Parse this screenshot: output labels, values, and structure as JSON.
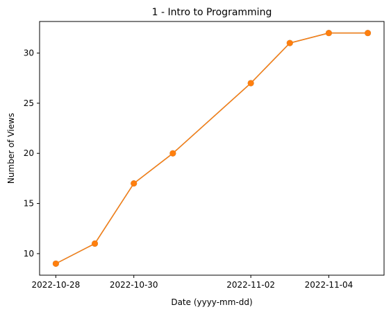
{
  "chart_data": {
    "type": "line",
    "title": "1 - Intro to Programming",
    "xlabel": "Date (yyyy-mm-dd)",
    "ylabel": "Number of Views",
    "x_tick_labels": [
      "2022-10-28",
      "2022-10-30",
      "2022-11-02",
      "2022-11-04"
    ],
    "y_tick_labels": [
      "10",
      "15",
      "20",
      "25",
      "30"
    ],
    "y_ticks": [
      10,
      15,
      20,
      25,
      30
    ],
    "ylim": [
      7.85,
      33.15
    ],
    "xlim": [
      "2022-10-27T14:00",
      "2022-11-05T10:00"
    ],
    "grid": false,
    "series": [
      {
        "color": "#1f77b4",
        "x": [
          "2022-10-28",
          "2022-10-29",
          "2022-10-30",
          "2022-10-31",
          "2022-11-02",
          "2022-11-03",
          "2022-11-04",
          "2022-11-05"
        ],
        "y": [
          9,
          11,
          17,
          20,
          27,
          31,
          32,
          32
        ]
      },
      {
        "color": "#ff7f0e",
        "x": [
          "2022-10-28",
          "2022-10-29",
          "2022-10-30",
          "2022-10-31",
          "2022-11-02",
          "2022-11-03",
          "2022-11-04",
          "2022-11-05"
        ],
        "y": [
          9,
          11,
          17,
          20,
          27,
          31,
          32,
          32
        ]
      }
    ]
  }
}
